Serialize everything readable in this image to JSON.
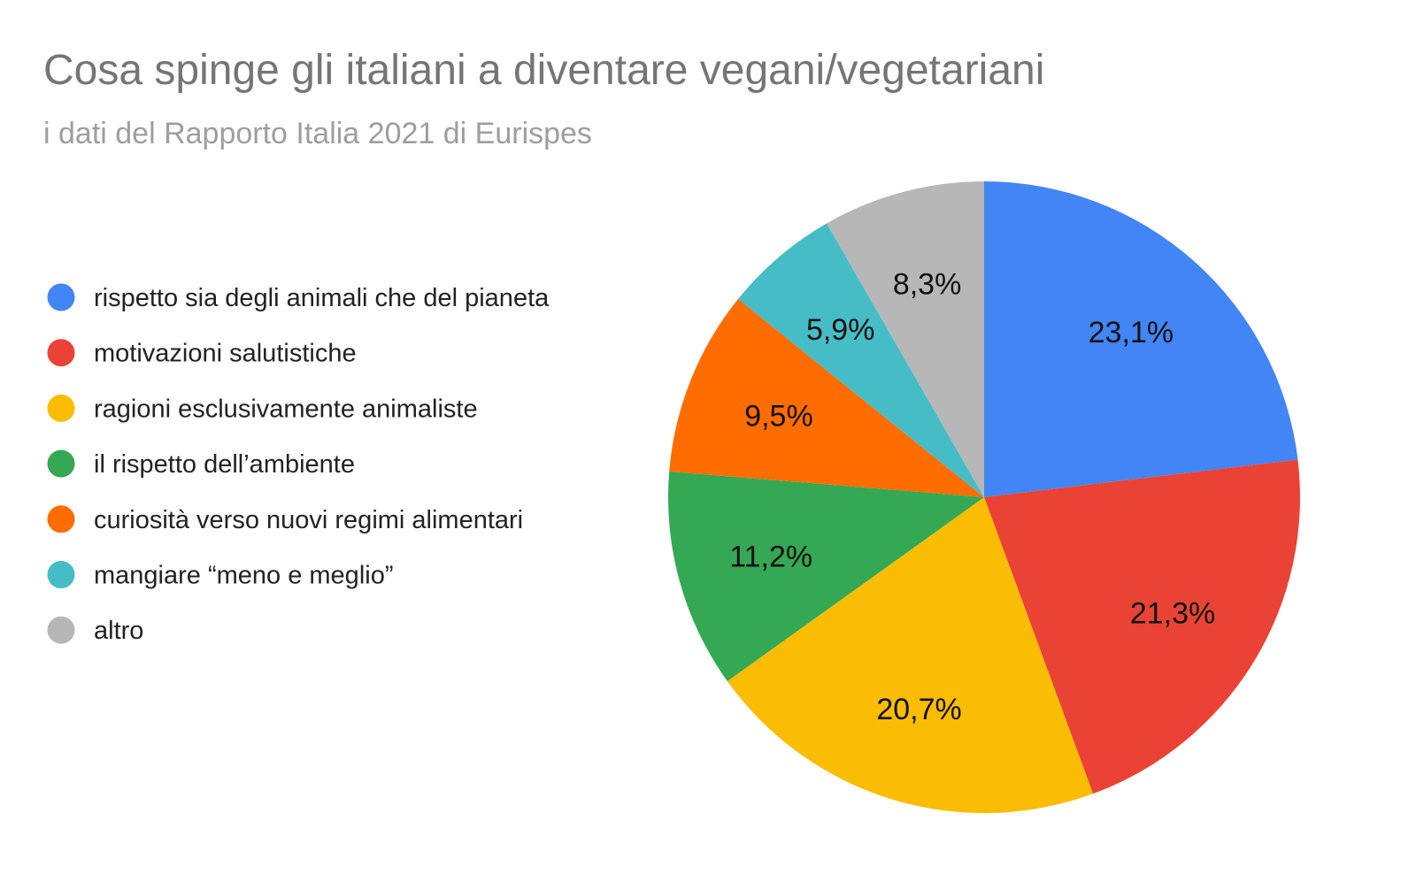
{
  "chart_data": {
    "type": "pie",
    "title": "Cosa spinge gli italiani a diventare vegani/vegetariani",
    "subtitle": "i dati del Rapporto Italia 2021 di Eurispes",
    "legend_position": "left",
    "start_angle": "top, clockwise",
    "slices": [
      {
        "name": "rispetto sia degli animali che del pianeta",
        "value": 23.1,
        "label": "23,1%",
        "color": "#4285f4"
      },
      {
        "name": "motivazioni salutistiche",
        "value": 21.3,
        "label": "21,3%",
        "color": "#ea4335"
      },
      {
        "name": "ragioni esclusivamente animaliste",
        "value": 20.7,
        "label": "20,7%",
        "color": "#fbbc04"
      },
      {
        "name": "il rispetto dell’ambiente",
        "value": 11.2,
        "label": "11,2%",
        "color": "#34a853"
      },
      {
        "name": "curiosità verso nuovi regimi alimentari",
        "value": 9.5,
        "label": "9,5%",
        "color": "#ff6d01"
      },
      {
        "name": "mangiare “meno e meglio”",
        "value": 5.9,
        "label": "5,9%",
        "color": "#46bdc6"
      },
      {
        "name": "altro",
        "value": 8.3,
        "label": "8,3%",
        "color": "#b7b7b7"
      }
    ]
  }
}
